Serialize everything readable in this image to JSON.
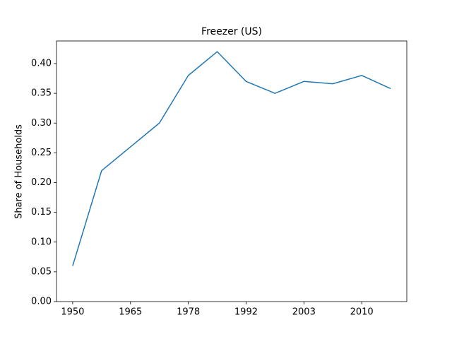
{
  "chart_data": {
    "type": "line",
    "title": "Freezer (US)",
    "ylabel": "Share of Households",
    "categories": [
      "1950",
      null,
      "1965",
      null,
      "1978",
      null,
      "1992",
      null,
      "2003",
      null,
      "2010",
      null
    ],
    "values": [
      0.06,
      0.22,
      0.26,
      0.3,
      0.38,
      0.42,
      0.37,
      0.35,
      0.37,
      0.366,
      0.38,
      0.358
    ],
    "color": "#1f77b4",
    "ylim": [
      0,
      0.438
    ],
    "yticks": [
      {
        "value": 0,
        "label": "0.00"
      },
      0.05,
      {
        "value": 0.1,
        "label": "0.10"
      },
      0.15,
      {
        "value": 0.2,
        "label": "0.20"
      },
      0.25,
      {
        "value": 0.3,
        "label": "0.30"
      },
      0.35,
      {
        "value": 0.4,
        "label": "0.40"
      }
    ],
    "grid": false
  }
}
